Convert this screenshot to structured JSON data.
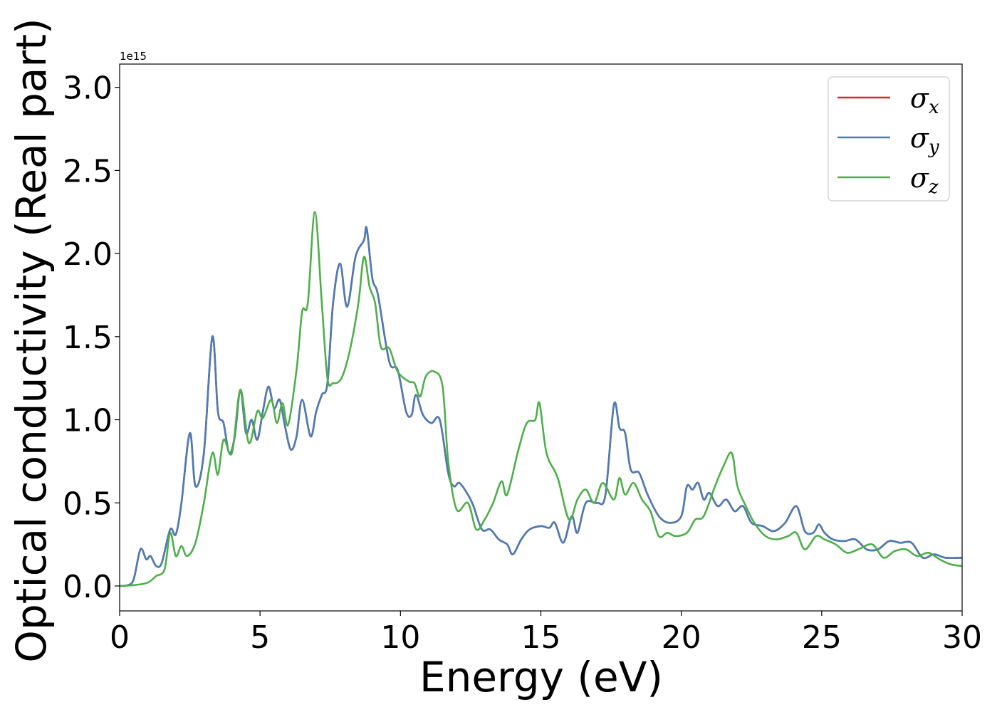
{
  "chart_data": {
    "type": "line",
    "xlabel": "Energy (eV)",
    "ylabel": "Optical conductivity (Real part)",
    "y_offset_text": "1e15",
    "xlim": [
      0,
      30
    ],
    "ylim": [
      -0.15,
      3.14
    ],
    "y_scale_factor": 1000000000000000.0,
    "x_ticks": [
      0,
      5,
      10,
      15,
      20,
      25,
      30
    ],
    "x_tick_labels": [
      "0",
      "5",
      "10",
      "15",
      "20",
      "25",
      "30"
    ],
    "y_ticks": [
      0,
      0.5,
      1,
      1.5,
      2,
      2.5,
      3
    ],
    "y_tick_labels": [
      "0.0",
      "0.5",
      "1.0",
      "1.5",
      "2.0",
      "2.5",
      "3.0"
    ],
    "grid": false,
    "legend_position": "top-right",
    "colors": {
      "sigma_x": "#d62728",
      "sigma_y": "#4a7db5",
      "sigma_z": "#4daf4a"
    },
    "series": [
      {
        "name": "σx",
        "key": "sigma_x",
        "color": "#d62728",
        "same_as": "sigma_y"
      },
      {
        "name": "σy",
        "key": "sigma_y",
        "color": "#4a7db5",
        "points": [
          [
            0,
            0
          ],
          [
            0.3,
            0.005
          ],
          [
            0.5,
            0.04
          ],
          [
            0.7,
            0.2
          ],
          [
            0.8,
            0.22
          ],
          [
            0.95,
            0.16
          ],
          [
            1.1,
            0.18
          ],
          [
            1.3,
            0.12
          ],
          [
            1.5,
            0.14
          ],
          [
            1.8,
            0.34
          ],
          [
            2.0,
            0.31
          ],
          [
            2.2,
            0.5
          ],
          [
            2.5,
            0.92
          ],
          [
            2.7,
            0.6
          ],
          [
            3.0,
            0.8
          ],
          [
            3.3,
            1.5
          ],
          [
            3.5,
            1.05
          ],
          [
            3.7,
            0.98
          ],
          [
            3.9,
            0.8
          ],
          [
            4.1,
            0.9
          ],
          [
            4.3,
            1.18
          ],
          [
            4.5,
            0.92
          ],
          [
            4.7,
            1.0
          ],
          [
            4.9,
            0.88
          ],
          [
            5.1,
            1.05
          ],
          [
            5.3,
            1.2
          ],
          [
            5.5,
            1.07
          ],
          [
            5.7,
            1.12
          ],
          [
            5.9,
            0.95
          ],
          [
            6.1,
            0.82
          ],
          [
            6.3,
            0.9
          ],
          [
            6.5,
            1.12
          ],
          [
            6.8,
            0.9
          ],
          [
            7.0,
            1.05
          ],
          [
            7.2,
            1.15
          ],
          [
            7.4,
            1.22
          ],
          [
            7.6,
            1.7
          ],
          [
            7.85,
            1.94
          ],
          [
            8.1,
            1.68
          ],
          [
            8.4,
            1.98
          ],
          [
            8.7,
            2.08
          ],
          [
            8.8,
            2.15
          ],
          [
            9.0,
            1.85
          ],
          [
            9.2,
            1.75
          ],
          [
            9.6,
            1.35
          ],
          [
            9.9,
            1.3
          ],
          [
            10.2,
            1.05
          ],
          [
            10.4,
            1.03
          ],
          [
            10.55,
            1.15
          ],
          [
            10.8,
            1.03
          ],
          [
            11.1,
            0.98
          ],
          [
            11.4,
            1.0
          ],
          [
            11.7,
            0.68
          ],
          [
            11.9,
            0.6
          ],
          [
            12.1,
            0.62
          ],
          [
            12.4,
            0.55
          ],
          [
            12.6,
            0.48
          ],
          [
            12.9,
            0.34
          ],
          [
            13.2,
            0.34
          ],
          [
            13.5,
            0.28
          ],
          [
            13.8,
            0.25
          ],
          [
            14.0,
            0.19
          ],
          [
            14.3,
            0.28
          ],
          [
            14.6,
            0.34
          ],
          [
            15.0,
            0.36
          ],
          [
            15.3,
            0.35
          ],
          [
            15.5,
            0.38
          ],
          [
            15.8,
            0.26
          ],
          [
            16.1,
            0.42
          ],
          [
            16.3,
            0.32
          ],
          [
            16.6,
            0.5
          ],
          [
            17.0,
            0.5
          ],
          [
            17.3,
            0.55
          ],
          [
            17.6,
            1.09
          ],
          [
            17.8,
            0.95
          ],
          [
            18.0,
            0.92
          ],
          [
            18.2,
            0.7
          ],
          [
            18.5,
            0.68
          ],
          [
            18.8,
            0.55
          ],
          [
            19.2,
            0.42
          ],
          [
            19.6,
            0.38
          ],
          [
            20.0,
            0.42
          ],
          [
            20.2,
            0.6
          ],
          [
            20.4,
            0.58
          ],
          [
            20.6,
            0.62
          ],
          [
            20.8,
            0.52
          ],
          [
            21.0,
            0.56
          ],
          [
            21.3,
            0.48
          ],
          [
            21.6,
            0.52
          ],
          [
            21.9,
            0.45
          ],
          [
            22.2,
            0.48
          ],
          [
            22.5,
            0.38
          ],
          [
            22.9,
            0.36
          ],
          [
            23.3,
            0.33
          ],
          [
            23.7,
            0.38
          ],
          [
            24.1,
            0.48
          ],
          [
            24.4,
            0.33
          ],
          [
            24.7,
            0.32
          ],
          [
            24.9,
            0.37
          ],
          [
            25.1,
            0.32
          ],
          [
            25.4,
            0.28
          ],
          [
            25.8,
            0.27
          ],
          [
            26.2,
            0.28
          ],
          [
            26.6,
            0.22
          ],
          [
            27.0,
            0.22
          ],
          [
            27.4,
            0.27
          ],
          [
            27.8,
            0.26
          ],
          [
            28.2,
            0.26
          ],
          [
            28.6,
            0.17
          ],
          [
            29.0,
            0.19
          ],
          [
            29.4,
            0.17
          ],
          [
            30.0,
            0.17
          ]
        ]
      },
      {
        "name": "σz",
        "key": "sigma_z",
        "color": "#4daf4a",
        "points": [
          [
            0,
            0
          ],
          [
            0.5,
            0.005
          ],
          [
            1.0,
            0.02
          ],
          [
            1.3,
            0.06
          ],
          [
            1.6,
            0.1
          ],
          [
            1.8,
            0.32
          ],
          [
            2.0,
            0.18
          ],
          [
            2.2,
            0.24
          ],
          [
            2.4,
            0.18
          ],
          [
            2.7,
            0.26
          ],
          [
            3.0,
            0.5
          ],
          [
            3.3,
            0.8
          ],
          [
            3.5,
            0.67
          ],
          [
            3.7,
            0.88
          ],
          [
            4.0,
            0.8
          ],
          [
            4.3,
            1.18
          ],
          [
            4.6,
            0.86
          ],
          [
            4.9,
            1.05
          ],
          [
            5.1,
            1.01
          ],
          [
            5.4,
            1.12
          ],
          [
            5.6,
            0.98
          ],
          [
            5.8,
            1.1
          ],
          [
            6.0,
            0.97
          ],
          [
            6.3,
            1.3
          ],
          [
            6.5,
            1.65
          ],
          [
            6.7,
            1.7
          ],
          [
            6.95,
            2.25
          ],
          [
            7.2,
            1.7
          ],
          [
            7.4,
            1.25
          ],
          [
            7.6,
            1.22
          ],
          [
            7.9,
            1.25
          ],
          [
            8.2,
            1.42
          ],
          [
            8.5,
            1.7
          ],
          [
            8.7,
            1.98
          ],
          [
            8.9,
            1.8
          ],
          [
            9.1,
            1.7
          ],
          [
            9.3,
            1.44
          ],
          [
            9.6,
            1.43
          ],
          [
            9.9,
            1.29
          ],
          [
            10.3,
            1.23
          ],
          [
            10.5,
            1.22
          ],
          [
            10.7,
            1.14
          ],
          [
            10.9,
            1.26
          ],
          [
            11.2,
            1.29
          ],
          [
            11.5,
            1.2
          ],
          [
            11.7,
            0.75
          ],
          [
            12.0,
            0.46
          ],
          [
            12.4,
            0.5
          ],
          [
            12.7,
            0.34
          ],
          [
            13.0,
            0.4
          ],
          [
            13.3,
            0.5
          ],
          [
            13.6,
            0.63
          ],
          [
            13.8,
            0.55
          ],
          [
            14.2,
            0.82
          ],
          [
            14.5,
            0.98
          ],
          [
            14.8,
            1.0
          ],
          [
            14.95,
            1.1
          ],
          [
            15.2,
            0.8
          ],
          [
            15.6,
            0.65
          ],
          [
            16.0,
            0.4
          ],
          [
            16.3,
            0.52
          ],
          [
            16.6,
            0.58
          ],
          [
            16.9,
            0.5
          ],
          [
            17.2,
            0.62
          ],
          [
            17.6,
            0.52
          ],
          [
            17.8,
            0.65
          ],
          [
            18.0,
            0.55
          ],
          [
            18.3,
            0.62
          ],
          [
            18.6,
            0.52
          ],
          [
            18.9,
            0.45
          ],
          [
            19.2,
            0.3
          ],
          [
            19.5,
            0.32
          ],
          [
            19.8,
            0.3
          ],
          [
            20.2,
            0.32
          ],
          [
            20.5,
            0.4
          ],
          [
            20.8,
            0.42
          ],
          [
            21.2,
            0.6
          ],
          [
            21.5,
            0.72
          ],
          [
            21.8,
            0.8
          ],
          [
            22.0,
            0.6
          ],
          [
            22.3,
            0.48
          ],
          [
            22.6,
            0.38
          ],
          [
            23.0,
            0.3
          ],
          [
            23.4,
            0.28
          ],
          [
            23.8,
            0.3
          ],
          [
            24.1,
            0.32
          ],
          [
            24.4,
            0.22
          ],
          [
            24.8,
            0.3
          ],
          [
            25.1,
            0.28
          ],
          [
            25.5,
            0.25
          ],
          [
            25.9,
            0.2
          ],
          [
            26.3,
            0.22
          ],
          [
            26.8,
            0.25
          ],
          [
            27.2,
            0.17
          ],
          [
            27.6,
            0.21
          ],
          [
            28.0,
            0.22
          ],
          [
            28.4,
            0.18
          ],
          [
            28.8,
            0.2
          ],
          [
            29.2,
            0.16
          ],
          [
            29.6,
            0.13
          ],
          [
            30.0,
            0.12
          ]
        ]
      }
    ]
  }
}
